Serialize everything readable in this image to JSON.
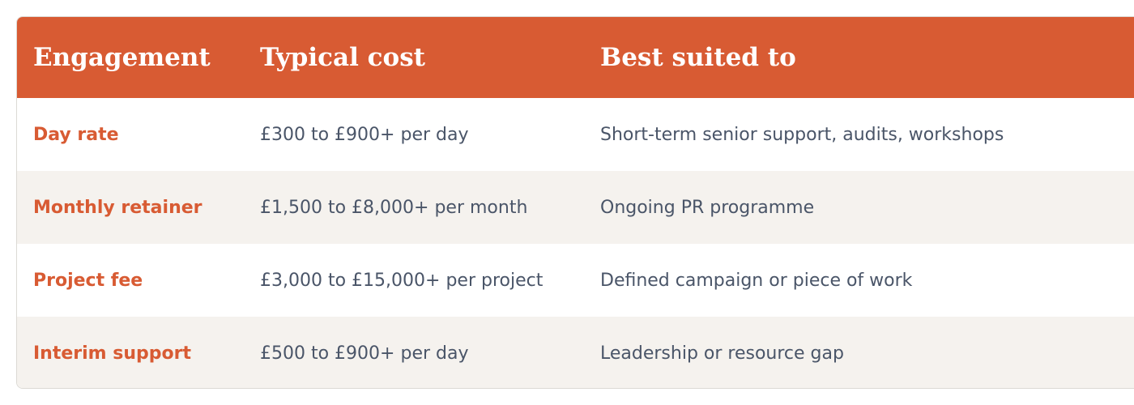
{
  "table": {
    "header": [
      "Engagement",
      "Typical cost",
      "Best suited to"
    ],
    "rows": [
      [
        "Day rate",
        "£300 to £900+ per day",
        "Short-term senior support, audits, workshops"
      ],
      [
        "Monthly retainer",
        "£1,500 to £8,000+ per month",
        "Ongoing PR programme"
      ],
      [
        "Project fee",
        "£3,000 to £15,000+ per project",
        "Defined campaign or piece of work"
      ],
      [
        "Interim support",
        "£500 to £900+ per day",
        "Leadership or resource gap"
      ]
    ]
  }
}
